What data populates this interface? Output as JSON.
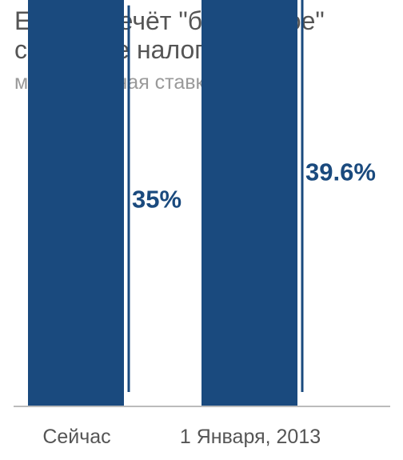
{
  "chart_data": {
    "type": "bar",
    "title_lines": [
      "Если истечёт \"бушевское\"",
      "снижение налогов"
    ],
    "subtitle": "максимальная ставка налога",
    "categories": [
      "Сейчас",
      "1 Января, 2013"
    ],
    "values": [
      35,
      39.6
    ],
    "data_labels": [
      "35%",
      "39.6%"
    ],
    "ylim": [
      0,
      40
    ],
    "grid": false,
    "colors": {
      "bar": "#1a4a7e",
      "label": "#1a4a7e",
      "axis": "#bbbbbb"
    }
  }
}
